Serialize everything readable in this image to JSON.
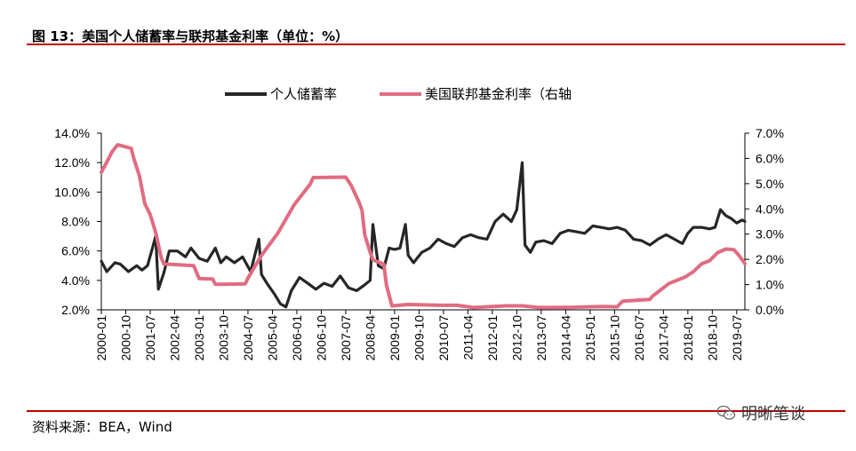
{
  "header": {
    "title": "图 13：美国个人储蓄率与联邦基金利率（单位：%）"
  },
  "footer": {
    "source": "资料来源：BEA，Wind",
    "brand": "明晰笔谈",
    "brand_icon": "wechat-icon"
  },
  "colors": {
    "accent_rule": "#c00000",
    "saving_line": "#262626",
    "fed_line": "#e06c80"
  },
  "chart_data": {
    "type": "line",
    "title": "美国个人储蓄率与联邦基金利率",
    "x_start": "2000-01",
    "x_end": "2019-10",
    "x_ticks": [
      "2000-01",
      "2000-10",
      "2001-07",
      "2002-04",
      "2003-01",
      "2003-10",
      "2004-07",
      "2005-04",
      "2006-01",
      "2006-10",
      "2007-07",
      "2008-04",
      "2009-01",
      "2009-10",
      "2010-07",
      "2011-04",
      "2012-01",
      "2012-10",
      "2013-07",
      "2014-04",
      "2015-01",
      "2015-10",
      "2016-07",
      "2017-04",
      "2018-01",
      "2018-10",
      "2019-07"
    ],
    "y_left": {
      "min": 2.0,
      "max": 14.0,
      "ticks": [
        "2.0%",
        "4.0%",
        "6.0%",
        "8.0%",
        "10.0%",
        "12.0%",
        "14.0%"
      ]
    },
    "y_right": {
      "min": 0.0,
      "max": 7.0,
      "ticks": [
        "0.0%",
        "1.0%",
        "2.0%",
        "3.0%",
        "4.0%",
        "5.0%",
        "6.0%",
        "7.0%"
      ]
    },
    "legend": {
      "position": "top-center"
    },
    "series": [
      {
        "name": "个人储蓄率",
        "axis": "left",
        "color": "#262626",
        "points": [
          [
            "2000-01",
            5.3
          ],
          [
            "2000-03",
            4.6
          ],
          [
            "2000-06",
            5.2
          ],
          [
            "2000-08",
            5.1
          ],
          [
            "2000-11",
            4.6
          ],
          [
            "2001-02",
            5.0
          ],
          [
            "2001-04",
            4.7
          ],
          [
            "2001-06",
            5.0
          ],
          [
            "2001-08",
            6.3
          ],
          [
            "2001-09",
            7.0
          ],
          [
            "2001-10",
            3.4
          ],
          [
            "2001-12",
            4.5
          ],
          [
            "2002-02",
            6.0
          ],
          [
            "2002-05",
            6.0
          ],
          [
            "2002-08",
            5.6
          ],
          [
            "2002-10",
            6.2
          ],
          [
            "2003-01",
            5.5
          ],
          [
            "2003-04",
            5.3
          ],
          [
            "2003-07",
            6.2
          ],
          [
            "2003-09",
            5.2
          ],
          [
            "2003-11",
            5.6
          ],
          [
            "2004-02",
            5.2
          ],
          [
            "2004-05",
            5.6
          ],
          [
            "2004-08",
            4.6
          ],
          [
            "2004-11",
            6.8
          ],
          [
            "2004-12",
            4.4
          ],
          [
            "2005-02",
            3.8
          ],
          [
            "2005-05",
            3.0
          ],
          [
            "2005-07",
            2.4
          ],
          [
            "2005-09",
            2.2
          ],
          [
            "2005-11",
            3.3
          ],
          [
            "2006-02",
            4.2
          ],
          [
            "2006-05",
            3.8
          ],
          [
            "2006-08",
            3.4
          ],
          [
            "2006-11",
            3.8
          ],
          [
            "2007-02",
            3.6
          ],
          [
            "2007-05",
            4.3
          ],
          [
            "2007-08",
            3.5
          ],
          [
            "2007-11",
            3.3
          ],
          [
            "2008-02",
            3.7
          ],
          [
            "2008-04",
            4.0
          ],
          [
            "2008-05",
            7.8
          ],
          [
            "2008-07",
            5.0
          ],
          [
            "2008-09",
            4.8
          ],
          [
            "2008-11",
            6.2
          ],
          [
            "2009-01",
            6.1
          ],
          [
            "2009-03",
            6.2
          ],
          [
            "2009-05",
            7.8
          ],
          [
            "2009-06",
            5.7
          ],
          [
            "2009-08",
            5.2
          ],
          [
            "2009-11",
            5.9
          ],
          [
            "2010-02",
            6.2
          ],
          [
            "2010-05",
            6.8
          ],
          [
            "2010-08",
            6.5
          ],
          [
            "2010-11",
            6.3
          ],
          [
            "2011-02",
            6.9
          ],
          [
            "2011-05",
            7.1
          ],
          [
            "2011-08",
            6.9
          ],
          [
            "2011-11",
            6.8
          ],
          [
            "2012-02",
            8.0
          ],
          [
            "2012-05",
            8.5
          ],
          [
            "2012-08",
            8.0
          ],
          [
            "2012-10",
            8.8
          ],
          [
            "2012-12",
            12.0
          ],
          [
            "2013-01",
            6.4
          ],
          [
            "2013-03",
            5.9
          ],
          [
            "2013-05",
            6.6
          ],
          [
            "2013-08",
            6.7
          ],
          [
            "2013-11",
            6.5
          ],
          [
            "2014-02",
            7.2
          ],
          [
            "2014-05",
            7.4
          ],
          [
            "2014-08",
            7.3
          ],
          [
            "2014-11",
            7.2
          ],
          [
            "2015-02",
            7.7
          ],
          [
            "2015-05",
            7.6
          ],
          [
            "2015-08",
            7.5
          ],
          [
            "2015-11",
            7.6
          ],
          [
            "2016-02",
            7.4
          ],
          [
            "2016-05",
            6.8
          ],
          [
            "2016-08",
            6.7
          ],
          [
            "2016-11",
            6.4
          ],
          [
            "2017-02",
            6.8
          ],
          [
            "2017-05",
            7.1
          ],
          [
            "2017-08",
            6.8
          ],
          [
            "2017-11",
            6.5
          ],
          [
            "2018-01",
            7.2
          ],
          [
            "2018-03",
            7.6
          ],
          [
            "2018-06",
            7.6
          ],
          [
            "2018-09",
            7.5
          ],
          [
            "2018-11",
            7.6
          ],
          [
            "2019-01",
            8.8
          ],
          [
            "2019-03",
            8.4
          ],
          [
            "2019-05",
            8.2
          ],
          [
            "2019-07",
            7.9
          ],
          [
            "2019-09",
            8.1
          ],
          [
            "2019-10",
            8.0
          ]
        ]
      },
      {
        "name": "美国联邦基金利率（右轴",
        "axis": "right",
        "color": "#e06c80",
        "points": [
          [
            "2000-01",
            5.45
          ],
          [
            "2000-03",
            5.85
          ],
          [
            "2000-05",
            6.27
          ],
          [
            "2000-07",
            6.54
          ],
          [
            "2000-12",
            6.4
          ],
          [
            "2001-01",
            5.98
          ],
          [
            "2001-03",
            5.31
          ],
          [
            "2001-05",
            4.21
          ],
          [
            "2001-07",
            3.77
          ],
          [
            "2001-09",
            3.07
          ],
          [
            "2001-11",
            2.09
          ],
          [
            "2001-12",
            1.82
          ],
          [
            "2002-11",
            1.75
          ],
          [
            "2003-01",
            1.24
          ],
          [
            "2003-06",
            1.22
          ],
          [
            "2003-07",
            1.01
          ],
          [
            "2004-06",
            1.03
          ],
          [
            "2004-07",
            1.26
          ],
          [
            "2004-12",
            2.16
          ],
          [
            "2005-06",
            3.04
          ],
          [
            "2005-12",
            4.16
          ],
          [
            "2006-06",
            4.99
          ],
          [
            "2006-07",
            5.24
          ],
          [
            "2007-07",
            5.26
          ],
          [
            "2007-09",
            4.94
          ],
          [
            "2007-12",
            4.24
          ],
          [
            "2008-01",
            3.94
          ],
          [
            "2008-02",
            2.98
          ],
          [
            "2008-04",
            2.28
          ],
          [
            "2008-05",
            1.98
          ],
          [
            "2008-09",
            1.81
          ],
          [
            "2008-10",
            0.97
          ],
          [
            "2008-12",
            0.16
          ],
          [
            "2009-06",
            0.21
          ],
          [
            "2010-06",
            0.18
          ],
          [
            "2010-12",
            0.18
          ],
          [
            "2011-06",
            0.09
          ],
          [
            "2012-06",
            0.16
          ],
          [
            "2012-12",
            0.16
          ],
          [
            "2013-06",
            0.09
          ],
          [
            "2014-06",
            0.1
          ],
          [
            "2014-12",
            0.12
          ],
          [
            "2015-06",
            0.13
          ],
          [
            "2015-11",
            0.12
          ],
          [
            "2015-12",
            0.24
          ],
          [
            "2016-01",
            0.34
          ],
          [
            "2016-11",
            0.41
          ],
          [
            "2016-12",
            0.54
          ],
          [
            "2017-03",
            0.79
          ],
          [
            "2017-06",
            1.04
          ],
          [
            "2017-12",
            1.3
          ],
          [
            "2018-03",
            1.51
          ],
          [
            "2018-06",
            1.82
          ],
          [
            "2018-09",
            1.95
          ],
          [
            "2018-12",
            2.27
          ],
          [
            "2019-03",
            2.41
          ],
          [
            "2019-06",
            2.38
          ],
          [
            "2019-08",
            2.13
          ],
          [
            "2019-10",
            1.83
          ]
        ]
      }
    ]
  }
}
